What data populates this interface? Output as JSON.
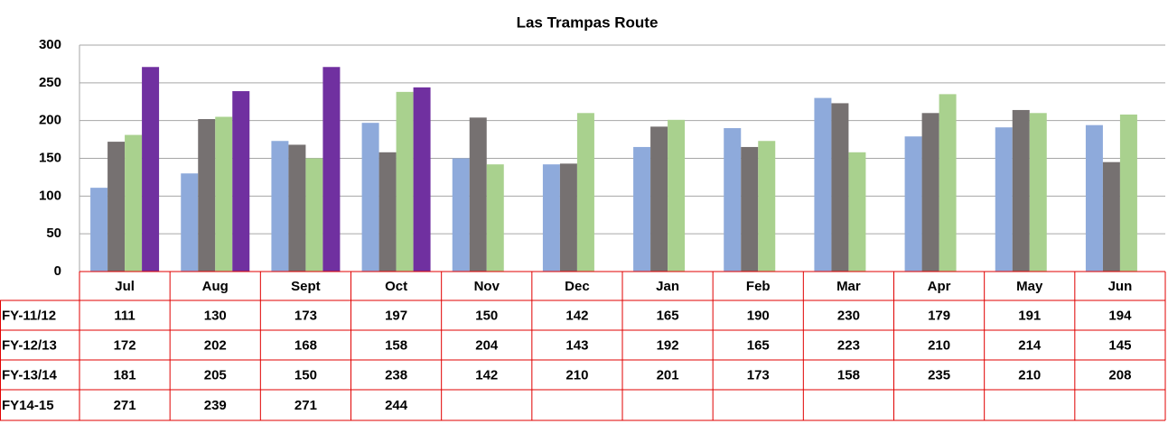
{
  "chart_data": {
    "type": "bar",
    "title": "Las Trampas Route",
    "categories": [
      "Jul",
      "Aug",
      "Sept",
      "Oct",
      "Nov",
      "Dec",
      "Jan",
      "Feb",
      "Mar",
      "Apr",
      "May",
      "Jun"
    ],
    "series": [
      {
        "name": "FY-11/12",
        "color": "#8eaadb",
        "values": [
          111,
          130,
          173,
          197,
          150,
          142,
          165,
          190,
          230,
          179,
          191,
          194
        ]
      },
      {
        "name": "FY-12/13",
        "color": "#767171",
        "values": [
          172,
          202,
          168,
          158,
          204,
          143,
          192,
          165,
          223,
          210,
          214,
          145
        ]
      },
      {
        "name": "FY-13/14",
        "color": "#a9d18e",
        "values": [
          181,
          205,
          150,
          238,
          142,
          210,
          201,
          173,
          158,
          235,
          210,
          208
        ]
      },
      {
        "name": "FY14-15",
        "color": "#7030a0",
        "values": [
          271,
          239,
          271,
          244,
          null,
          null,
          null,
          null,
          null,
          null,
          null,
          null
        ]
      }
    ],
    "ylim": [
      0,
      300
    ],
    "yticks": [
      0,
      50,
      100,
      150,
      200,
      250,
      300
    ],
    "grid": true
  }
}
